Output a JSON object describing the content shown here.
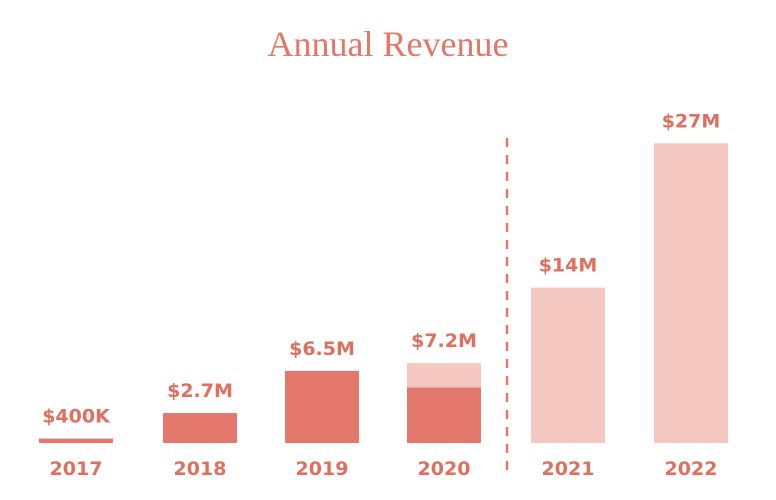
{
  "chart_data": {
    "type": "bar",
    "title": "Annual Revenue",
    "categories": [
      "2017",
      "2018",
      "2019",
      "2020",
      "2021",
      "2022"
    ],
    "values": [
      0.4,
      2.7,
      6.5,
      7.2,
      14,
      27
    ],
    "value_labels": [
      "$400K",
      "$2.7M",
      "$6.5M",
      "$7.2M",
      "$14M",
      "$27M"
    ],
    "series": [
      {
        "color": "#e5786d",
        "values": [
          0.4,
          2.7,
          6.5,
          5.0,
          null,
          null
        ]
      },
      {
        "color": "#f5c8c1",
        "values": [
          null,
          null,
          null,
          2.2,
          14,
          27
        ]
      }
    ],
    "ylim": [
      0,
      30
    ]
  }
}
